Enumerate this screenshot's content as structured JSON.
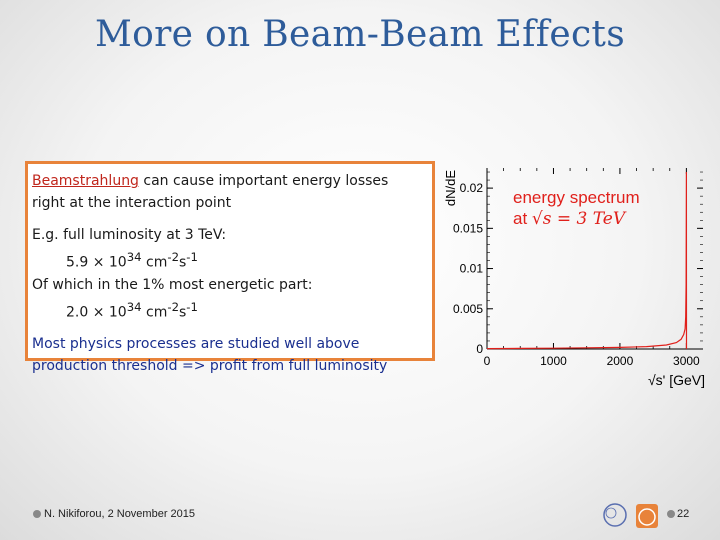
{
  "slide": {
    "title": "More on Beam-Beam Effects",
    "box": {
      "p1_term": "Beamstrahlung",
      "p1_rest": " can cause important energy losses",
      "p1_line2": "right at the interaction point",
      "example_intro": "E.g. full luminosity at 3 TeV:",
      "lumi_full_prefix": "5.9 × 10",
      "lumi_full_exp": "34",
      "lumi_unit": " cm",
      "lumi_unit_exp1": "-2",
      "lumi_unit_s": "s",
      "lumi_unit_exp2": "-1",
      "top_part_intro": "Of which in the 1% most energetic part:",
      "lumi_top_prefix": "2.0 × 10",
      "lumi_top_exp": "34",
      "conclusion_line1": "Most physics processes are studied well above",
      "conclusion_line2": "production threshold => profit from full luminosity"
    },
    "footer": {
      "author": "N. Nikiforou, 2 November 2015",
      "page": "22"
    }
  },
  "chart_data": {
    "type": "line",
    "ylabel": "dN/dE",
    "xlabel": "√s' [GeV]",
    "legend_line1": "energy spectrum",
    "legend_line2_prefix": "at ",
    "legend_line2_math": "√s = 3 TeV",
    "x_ticks": [
      "0",
      "1000",
      "2000",
      "3000"
    ],
    "y_ticks": [
      "0",
      "0.005",
      "0.01",
      "0.015",
      "0.02"
    ],
    "xlim": [
      0,
      3250
    ],
    "ylim": [
      0,
      0.0225
    ],
    "series": [
      {
        "name": "energy spectrum",
        "color": "#e0201b",
        "x": [
          0,
          500,
          1000,
          1500,
          2000,
          2400,
          2700,
          2850,
          2920,
          2960,
          2980,
          2990,
          2995,
          3000,
          3001
        ],
        "y": [
          5e-05,
          8e-05,
          0.0001,
          0.00015,
          0.0002,
          0.0003,
          0.0005,
          0.0008,
          0.0012,
          0.0018,
          0.0025,
          0.004,
          0.008,
          0.022,
          0
        ]
      }
    ]
  }
}
